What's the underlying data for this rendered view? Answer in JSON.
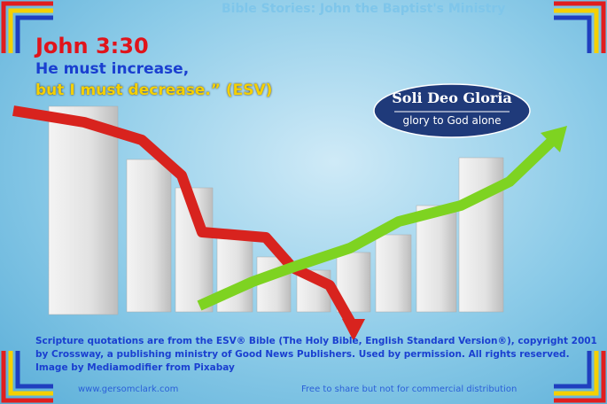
{
  "header": {
    "banner": "Bible Stories: John the Baptist's Ministry"
  },
  "verse": {
    "reference": "John 3:30",
    "line1": "He must increase,",
    "line2": "but I must decrease.” (ESV)"
  },
  "badge": {
    "title": "Soli Deo Gloria",
    "subtitle": "glory to God alone"
  },
  "credits": [
    "Scripture quotations are from the ESV® Bible (The Holy Bible, English Standard Version®), copyright 2001",
    "by Crossway, a publishing ministry of Good News Publishers. Used by permission. All rights reserved.",
    "Image by Mediamodifier from Pixabay"
  ],
  "footer": {
    "website": "www.gersomclark.com",
    "notice": "Free to share but not for commercial distribution"
  }
}
